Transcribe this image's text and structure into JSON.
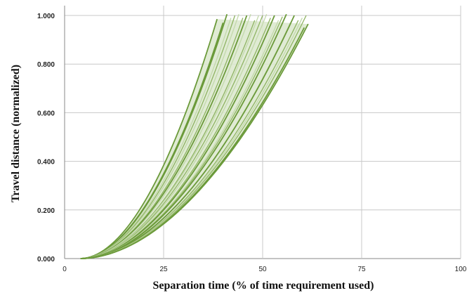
{
  "chart_data": {
    "type": "line",
    "title": "",
    "xlabel": "Separation time (% of time requirement used)",
    "ylabel": "Travel distance (normalized)",
    "xlim": [
      0,
      100
    ],
    "ylim": [
      0,
      1
    ],
    "x_ticks": [
      "0",
      "25",
      "50",
      "75",
      "100"
    ],
    "y_ticks": [
      "0.000",
      "0.200",
      "0.400",
      "0.600",
      "0.800",
      "1.000"
    ],
    "grid": true,
    "legend": "none",
    "colors": {
      "dark_series": "#6b9a3a",
      "light_fill": "#dbe8cc",
      "mid_series": "#8fb463"
    },
    "series_description_note": "",
    "series": [
      {
        "x_start": 4,
        "x_end": 38.5,
        "y_end": 0.985,
        "shade": "dark"
      },
      {
        "x_start": 4,
        "x_end": 40,
        "y_end": 0.97,
        "shade": "dark"
      },
      {
        "x_start": 4,
        "x_end": 41,
        "y_end": 1.005,
        "shade": "dark"
      },
      {
        "x_start": 4,
        "x_end": 42,
        "y_end": 0.99,
        "shade": "light"
      },
      {
        "x_start": 4,
        "x_end": 43,
        "y_end": 1.0,
        "shade": "mid"
      },
      {
        "x_start": 4,
        "x_end": 44,
        "y_end": 1.005,
        "shade": "light"
      },
      {
        "x_start": 4,
        "x_end": 45,
        "y_end": 0.99,
        "shade": "mid"
      },
      {
        "x_start": 4,
        "x_end": 46,
        "y_end": 1.0,
        "shade": "dark"
      },
      {
        "x_start": 4,
        "x_end": 47,
        "y_end": 1.005,
        "shade": "light"
      },
      {
        "x_start": 4,
        "x_end": 48,
        "y_end": 0.98,
        "shade": "mid"
      },
      {
        "x_start": 4,
        "x_end": 49,
        "y_end": 1.0,
        "shade": "light"
      },
      {
        "x_start": 4,
        "x_end": 50,
        "y_end": 1.0,
        "shade": "mid"
      },
      {
        "x_start": 4,
        "x_end": 51,
        "y_end": 1.005,
        "shade": "light"
      },
      {
        "x_start": 4,
        "x_end": 52,
        "y_end": 0.99,
        "shade": "mid"
      },
      {
        "x_start": 4,
        "x_end": 53,
        "y_end": 1.0,
        "shade": "dark"
      },
      {
        "x_start": 4,
        "x_end": 54,
        "y_end": 0.98,
        "shade": "light"
      },
      {
        "x_start": 4,
        "x_end": 55,
        "y_end": 0.995,
        "shade": "mid"
      },
      {
        "x_start": 4,
        "x_end": 56,
        "y_end": 1.005,
        "shade": "dark"
      },
      {
        "x_start": 4,
        "x_end": 57,
        "y_end": 0.97,
        "shade": "light"
      },
      {
        "x_start": 4,
        "x_end": 58,
        "y_end": 1.0,
        "shade": "dark"
      },
      {
        "x_start": 4,
        "x_end": 59,
        "y_end": 0.98,
        "shade": "mid"
      },
      {
        "x_start": 4,
        "x_end": 60,
        "y_end": 0.99,
        "shade": "light"
      },
      {
        "x_start": 4,
        "x_end": 60.5,
        "y_end": 0.95,
        "shade": "dark"
      },
      {
        "x_start": 4,
        "x_end": 61,
        "y_end": 1.0,
        "shade": "mid"
      },
      {
        "x_start": 4,
        "x_end": 61.5,
        "y_end": 0.965,
        "shade": "dark"
      }
    ]
  }
}
